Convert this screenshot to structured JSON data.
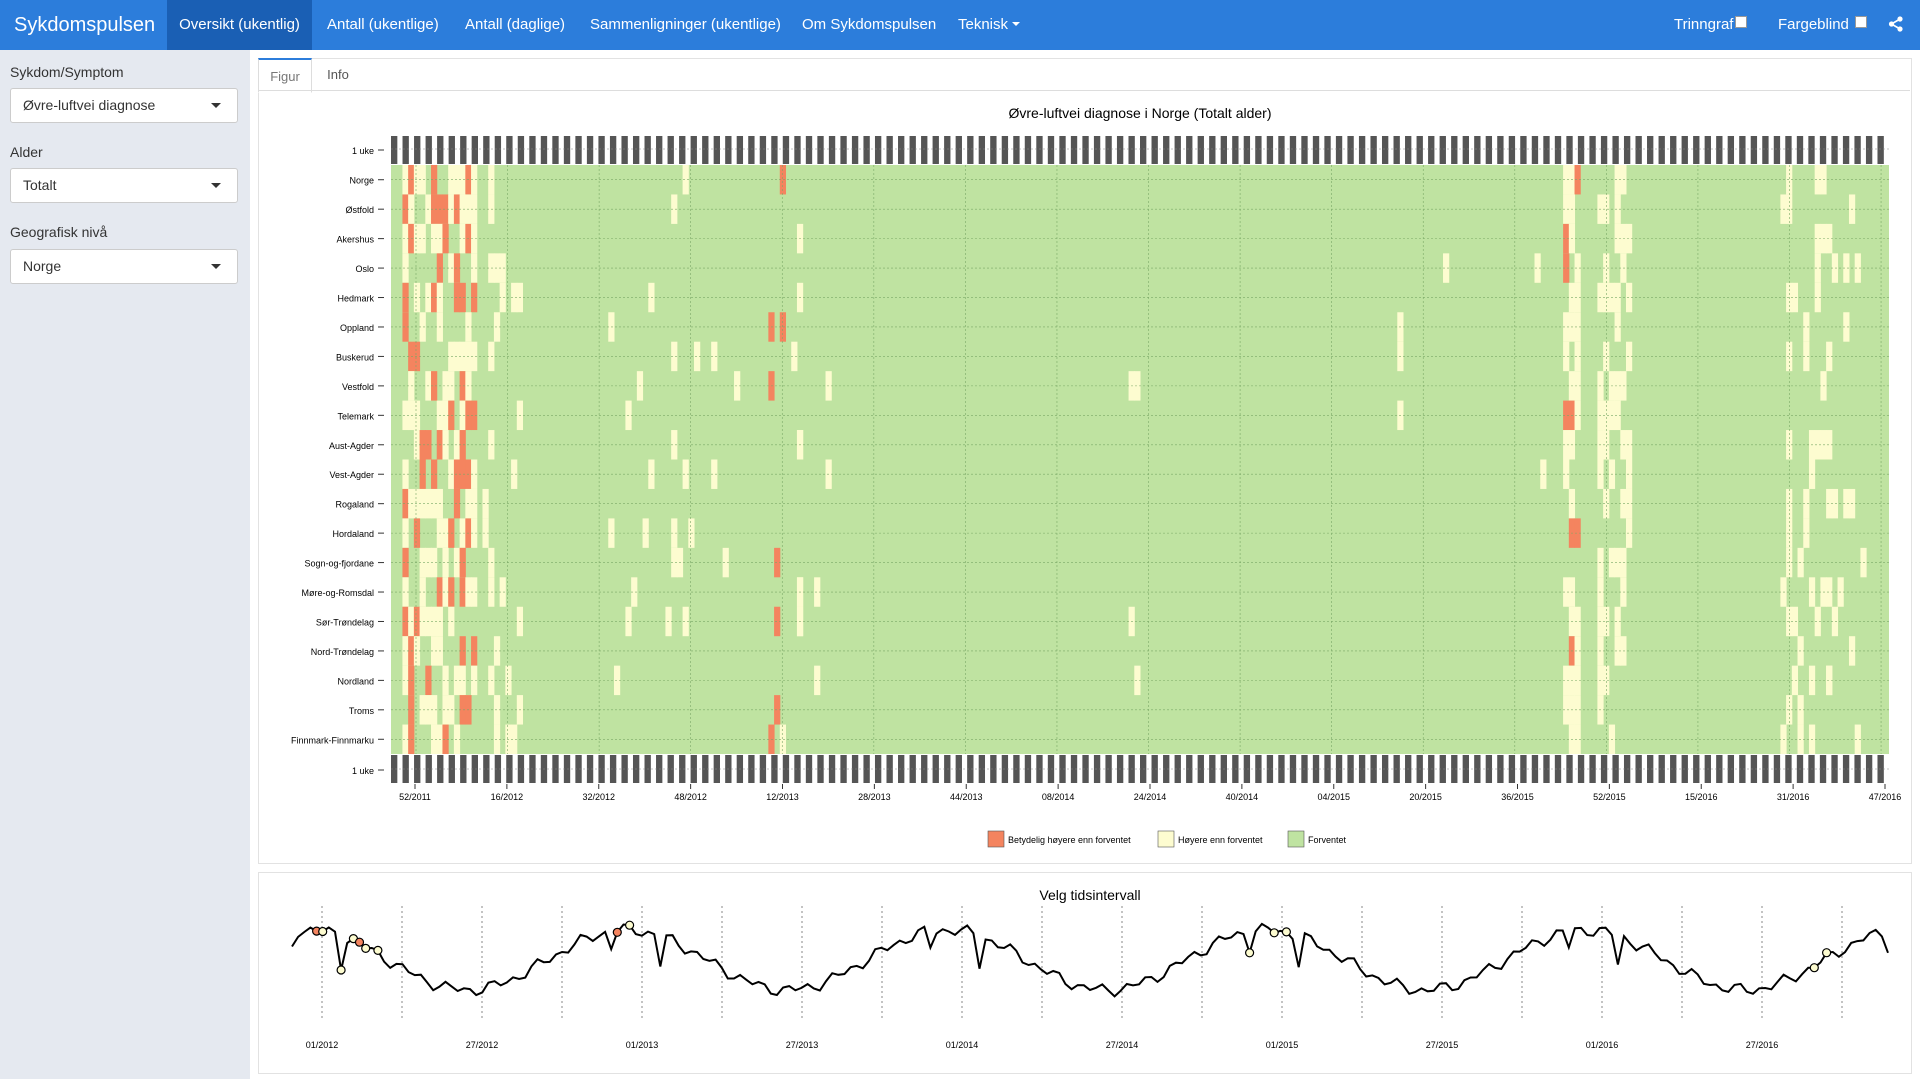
{
  "navbar": {
    "brand": "Sykdomspulsen",
    "items": [
      "Oversikt (ukentlig)",
      "Antall (ukentlige)",
      "Antall (daglige)",
      "Sammenligninger (ukentlige)",
      "Om Sykdomspulsen",
      "Teknisk"
    ],
    "trinngraf": "Trinngraf",
    "fargeblind": "Fargeblind",
    "share_icon": "share-icon"
  },
  "sidebar": {
    "sykdom_label": "Sykdom/Symptom",
    "sykdom_value": "Øvre-luftvei diagnose",
    "alder_label": "Alder",
    "alder_value": "Totalt",
    "geo_label": "Geografisk nivå",
    "geo_value": "Norge"
  },
  "tabs": [
    "Figur",
    "Info"
  ],
  "heatmap": {
    "title": "Øvre-luftvei diagnose i Norge (Totalt alder)",
    "week_row_label": "1 uke",
    "regions": [
      "Norge",
      "Østfold",
      "Akershus",
      "Oslo",
      "Hedmark",
      "Oppland",
      "Buskerud",
      "Vestfold",
      "Telemark",
      "Aust-Agder",
      "Vest-Agder",
      "Rogaland",
      "Hordaland",
      "Sogn-og-fjordane",
      "Møre-og-Romsdal",
      "Sør-Trøndelag",
      "Nord-Trøndelag",
      "Nordland",
      "Troms",
      "Finnmark-Finnmarku"
    ],
    "x_ticks": [
      "52/2011",
      "16/2012",
      "32/2012",
      "48/2012",
      "12/2013",
      "28/2013",
      "44/2013",
      "08/2014",
      "24/2014",
      "40/2014",
      "04/2015",
      "20/2015",
      "36/2015",
      "52/2015",
      "15/2016",
      "31/2016",
      "47/2016"
    ],
    "legend": [
      {
        "label": "Betydelig høyere enn forventet",
        "color": "#f4845f"
      },
      {
        "label": "Høyere enn forventet",
        "color": "#fdfcd0"
      },
      {
        "label": "Forventet",
        "color": "#bfe3a1"
      }
    ]
  },
  "timeline": {
    "title": "Velg tidsintervall",
    "x_ticks": [
      "01/2012",
      "27/2012",
      "01/2013",
      "27/2013",
      "01/2014",
      "27/2014",
      "01/2015",
      "27/2015",
      "01/2016",
      "27/2016"
    ]
  }
}
